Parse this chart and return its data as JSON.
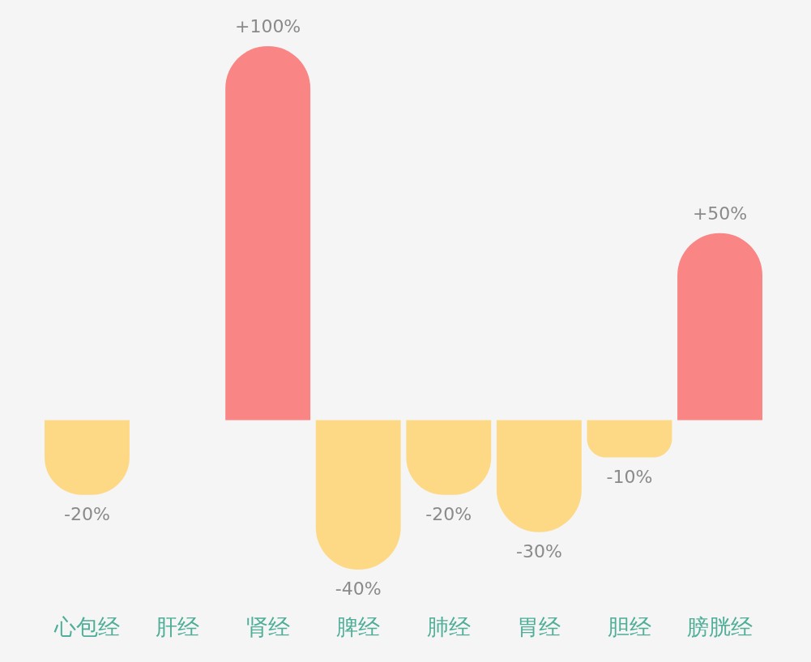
{
  "chart_data": {
    "type": "bar",
    "categories": [
      "心包经",
      "肝经",
      "肾经",
      "脾经",
      "肺经",
      "胃经",
      "胆经",
      "膀胱经"
    ],
    "values": [
      -20,
      null,
      100,
      -40,
      -20,
      -30,
      -10,
      50
    ],
    "colors": [
      "#fdd985",
      null,
      "#fa8585",
      "#fdd985",
      "#fdd985",
      "#fdd985",
      "#fdd985",
      "#fa8585"
    ],
    "value_labels": [
      "-20%",
      null,
      "+100%",
      "-40%",
      "-20%",
      "-30%",
      "-10%",
      "+50%"
    ]
  }
}
